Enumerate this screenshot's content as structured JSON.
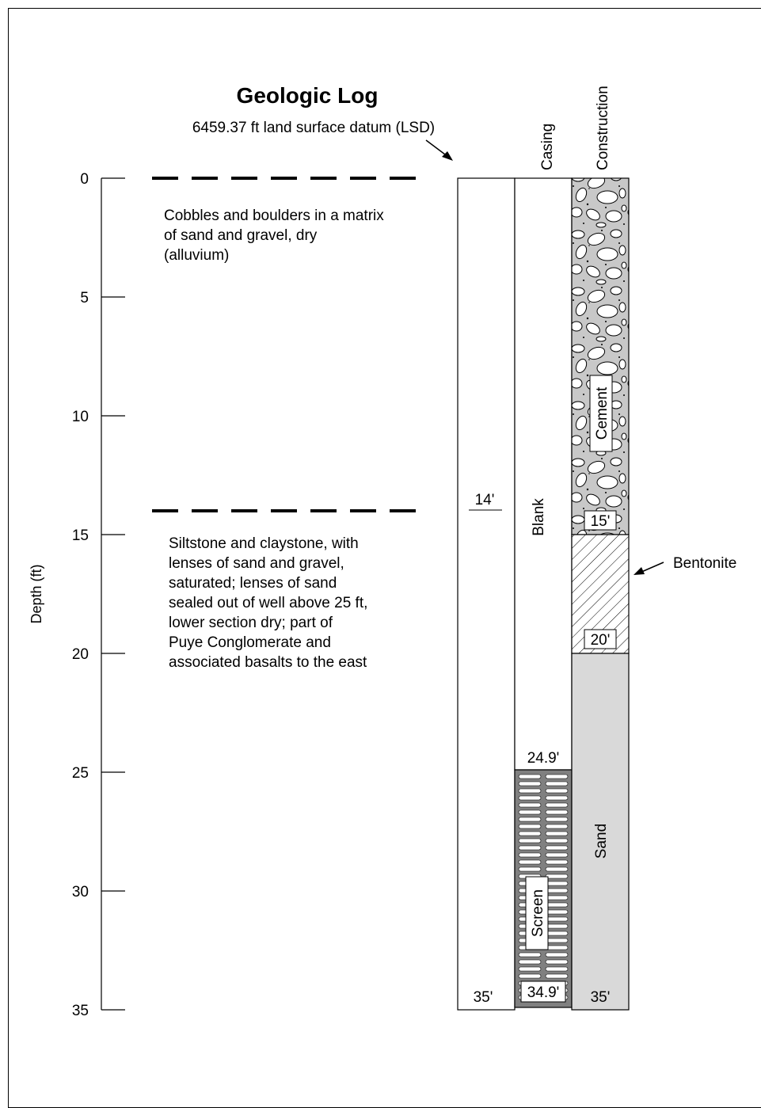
{
  "title": "Geologic Log",
  "datum_label": "6459.37 ft land surface datum (LSD)",
  "axis": {
    "label": "Depth (ft)",
    "ticks": [
      {
        "value": 0,
        "label": "0"
      },
      {
        "value": 5,
        "label": "5"
      },
      {
        "value": 10,
        "label": "10"
      },
      {
        "value": 15,
        "label": "15"
      },
      {
        "value": 20,
        "label": "20"
      },
      {
        "value": 25,
        "label": "25"
      },
      {
        "value": 30,
        "label": "30"
      },
      {
        "value": 35,
        "label": "35"
      }
    ],
    "range_ft": [
      0,
      35
    ]
  },
  "headers": {
    "casing": "Casing",
    "construction": "Construction"
  },
  "geologic_units": [
    {
      "top_ft": 0,
      "bottom_ft": 14,
      "lines": [
        "Cobbles and boulders in a matrix",
        "of  sand and gravel, dry",
        "(alluvium)"
      ]
    },
    {
      "top_ft": 14,
      "bottom_ft": 35,
      "lines": [
        "Siltstone and claystone, with",
        "lenses of sand and gravel,",
        "saturated; lenses of sand",
        "sealed out of well above 25 ft,",
        "lower section dry; part of",
        "Puye Conglomerate and",
        "associated basalts to the east"
      ]
    }
  ],
  "borehole": {
    "contact_depth_ft": 14,
    "contact_label": "14'",
    "total_depth_ft": 35,
    "bottom_label": "35'"
  },
  "casing": {
    "blank": {
      "top_ft": 0,
      "bottom_ft": 24.9,
      "label": "Blank",
      "bottom_label": "24.9'"
    },
    "screen": {
      "top_ft": 24.9,
      "bottom_ft": 34.9,
      "label": "Screen",
      "bottom_label": "34.9'"
    }
  },
  "construction": {
    "cement": {
      "top_ft": 0,
      "bottom_ft": 15,
      "label": "Cement",
      "bottom_label": "15'"
    },
    "bentonite": {
      "top_ft": 15,
      "bottom_ft": 20,
      "label": "Bentonite",
      "bottom_label": "20'"
    },
    "sand": {
      "top_ft": 20,
      "bottom_ft": 35,
      "label": "Sand",
      "bottom_label": "35'"
    }
  },
  "colors": {
    "cement_fill": "#c8c8c8",
    "screen_fill": "#808080",
    "sand_fill": "#d9d9d9",
    "line": "#000000"
  }
}
